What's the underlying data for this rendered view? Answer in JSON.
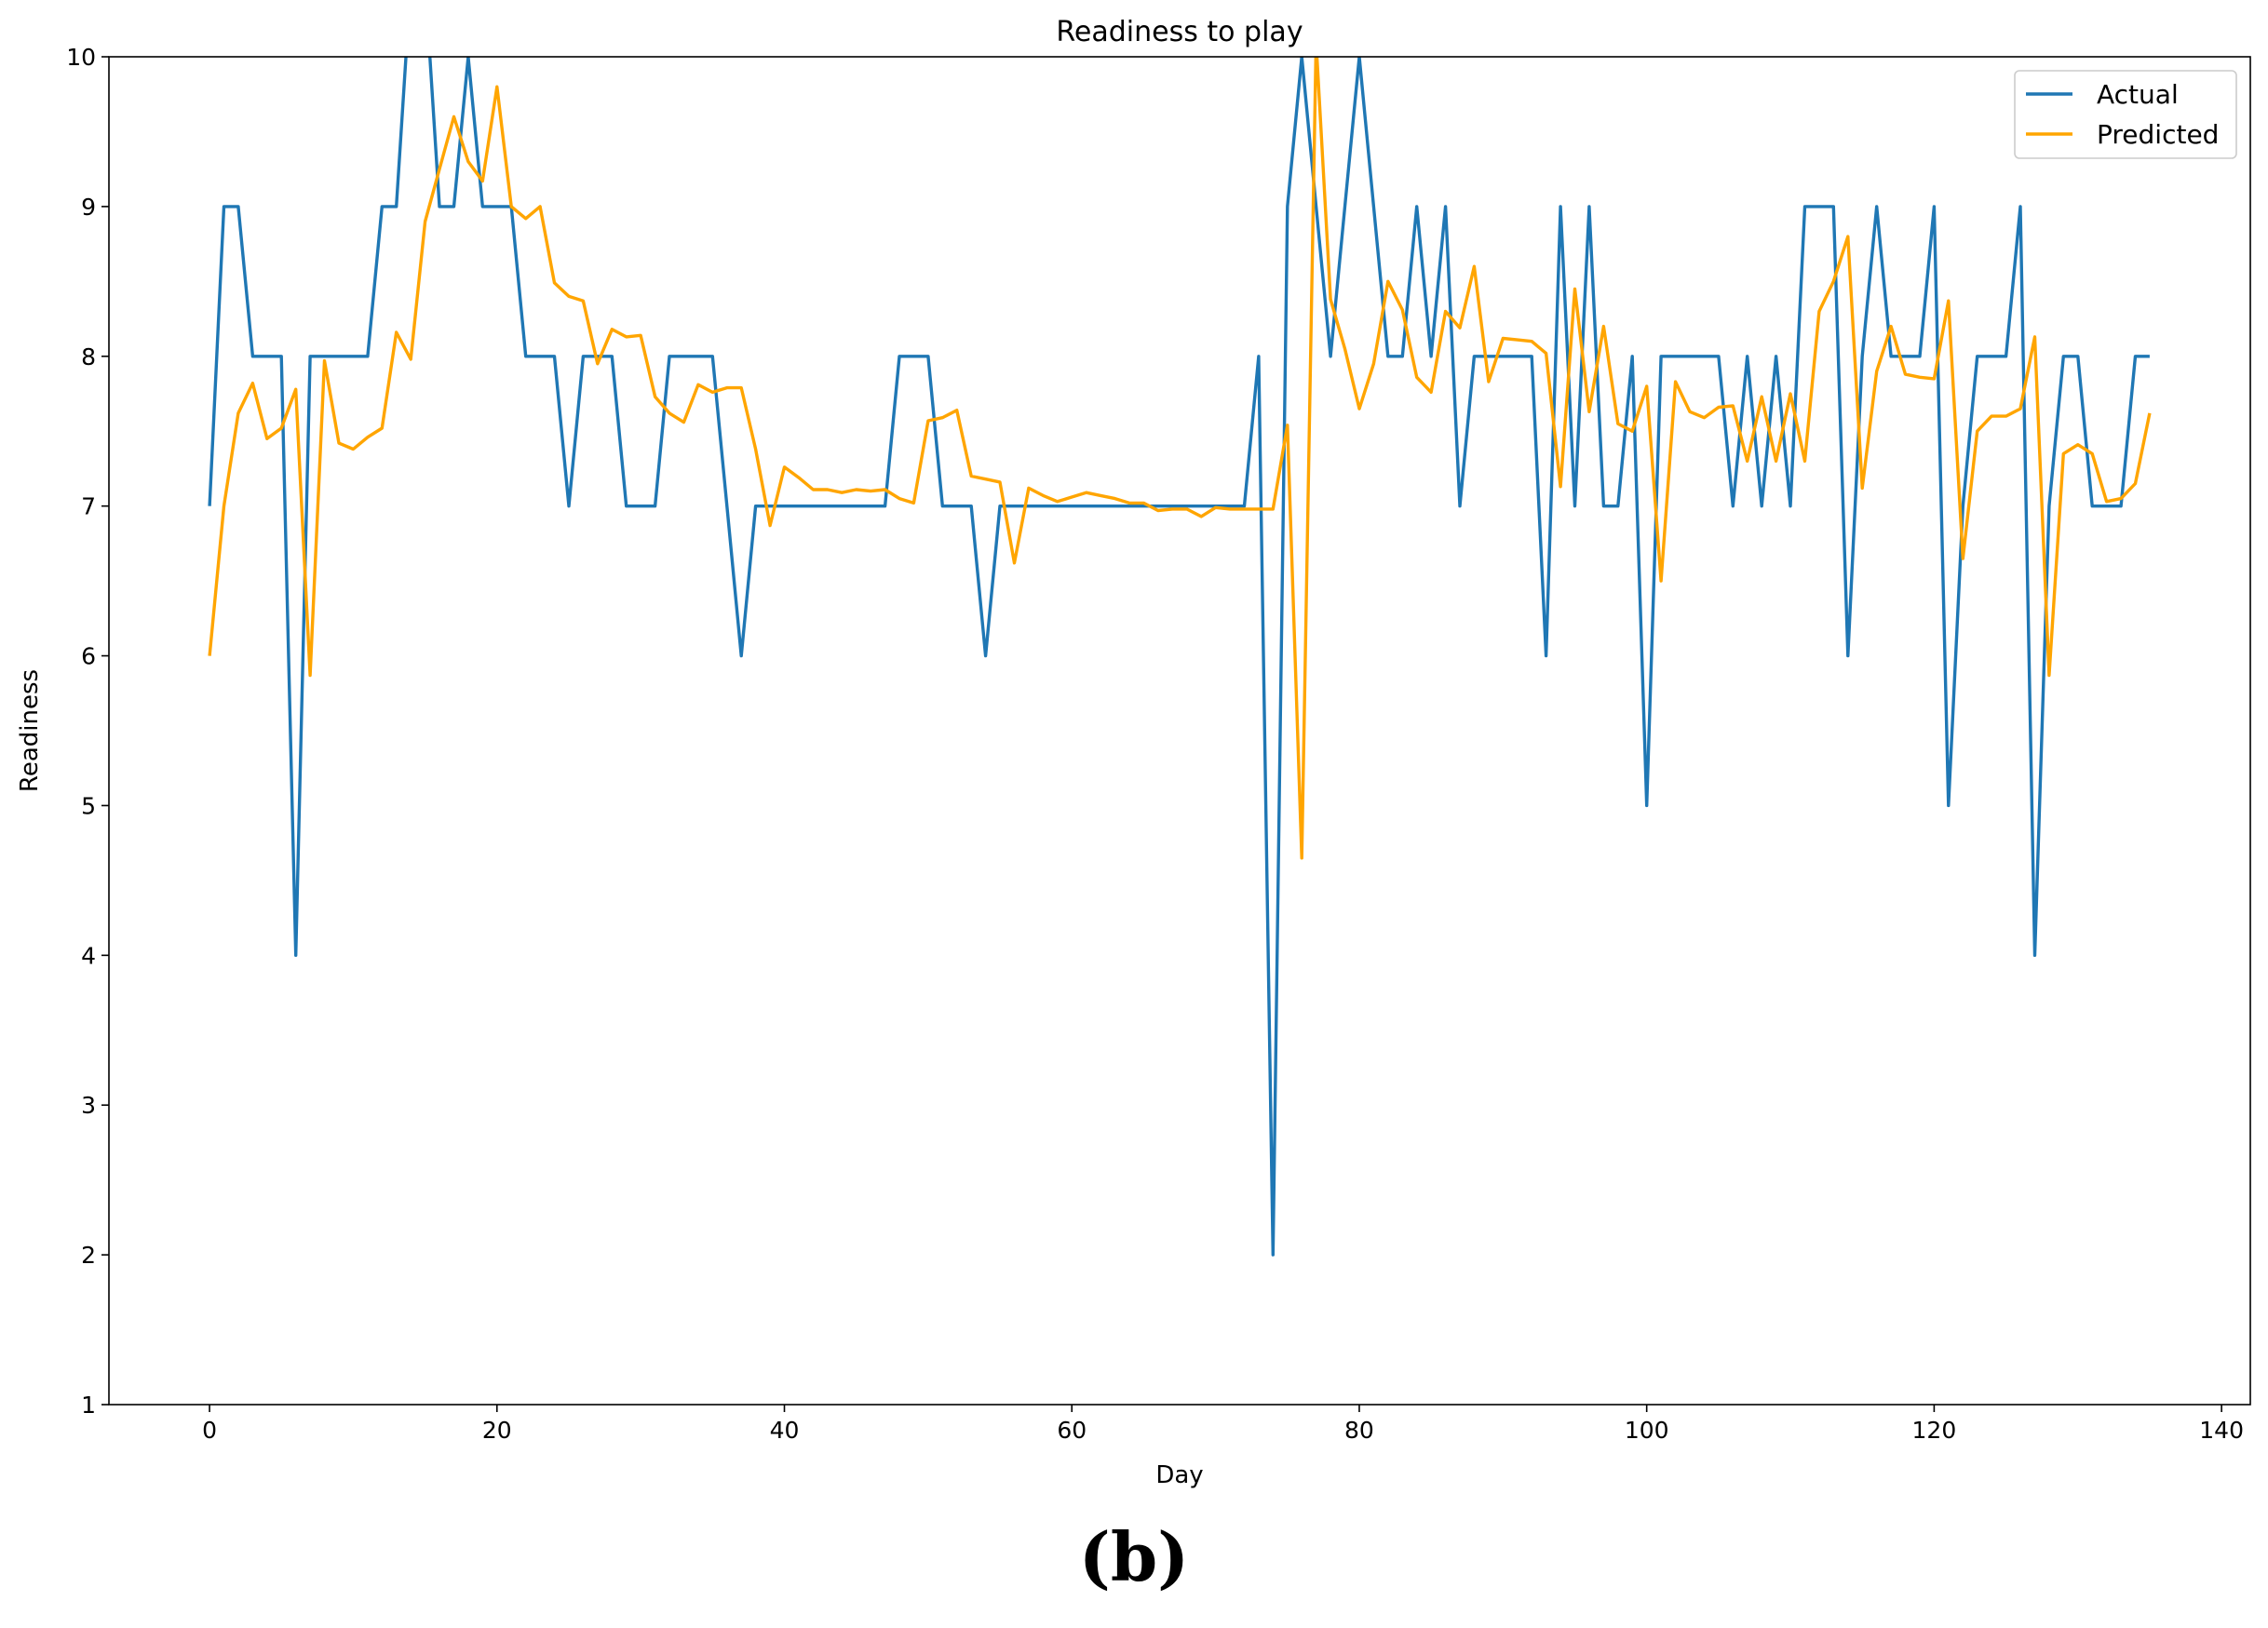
{
  "caption": "(b)",
  "chart_data": {
    "type": "line",
    "title": "Readiness to play",
    "xlabel": "Day",
    "ylabel": "Readiness",
    "xlim": [
      -7,
      142
    ],
    "ylim": [
      1,
      10
    ],
    "xticks": [
      0,
      20,
      40,
      60,
      80,
      100,
      120,
      140
    ],
    "yticks": [
      1,
      2,
      3,
      4,
      5,
      6,
      7,
      8,
      9,
      10
    ],
    "grid": false,
    "legend_position": "top-right",
    "series": [
      {
        "name": "Actual",
        "color": "#1f77b4",
        "x_start": 0,
        "values": [
          7,
          9,
          9,
          8,
          8,
          8,
          4,
          8,
          8,
          8,
          8,
          8,
          9,
          9,
          10.5,
          10.5,
          9,
          9,
          10,
          9,
          9,
          9,
          8,
          8,
          8,
          7,
          8,
          8,
          8,
          7,
          7,
          7,
          8,
          8,
          8,
          8,
          7,
          6,
          7,
          7,
          7,
          7,
          7,
          7,
          7,
          7,
          7,
          7,
          8,
          8,
          8,
          7,
          7,
          7,
          6,
          7,
          7,
          7,
          7,
          7,
          7,
          7,
          7,
          7,
          7,
          7,
          7,
          7,
          7,
          7,
          7,
          7,
          7,
          8,
          2,
          9,
          10,
          9,
          8,
          9,
          10,
          9,
          8,
          8,
          9,
          8,
          9,
          7,
          8,
          8,
          8,
          8,
          8,
          6,
          9,
          7,
          9,
          7,
          7,
          8,
          5,
          8,
          8,
          8,
          8,
          8,
          7,
          8,
          7,
          8,
          7,
          9,
          9,
          9,
          6,
          8,
          9,
          8,
          8,
          8,
          9,
          5,
          7,
          8,
          8,
          8,
          9,
          4,
          7,
          8,
          8,
          7,
          7,
          7,
          8,
          8
        ]
      },
      {
        "name": "Predicted",
        "color": "#ffa500",
        "x_start": 0,
        "values": [
          6,
          7,
          7.62,
          7.82,
          7.45,
          7.52,
          7.78,
          5.87,
          7.97,
          7.42,
          7.38,
          7.46,
          7.52,
          8.16,
          7.98,
          8.9,
          9.25,
          9.6,
          9.3,
          9.17,
          9.8,
          9.0,
          8.92,
          9.0,
          8.49,
          8.4,
          8.37,
          7.95,
          8.18,
          8.13,
          8.14,
          7.73,
          7.62,
          7.56,
          7.81,
          7.76,
          7.79,
          7.79,
          7.38,
          6.87,
          7.26,
          7.19,
          7.11,
          7.11,
          7.09,
          7.11,
          7.1,
          7.11,
          7.05,
          7.02,
          7.57,
          7.59,
          7.64,
          7.2,
          7.18,
          7.16,
          6.62,
          7.12,
          7.07,
          7.03,
          7.06,
          7.09,
          7.07,
          7.05,
          7.02,
          7.02,
          6.97,
          6.98,
          6.98,
          6.93,
          6.99,
          6.98,
          6.98,
          6.98,
          6.98,
          7.54,
          4.65,
          10.1,
          8.38,
          8.05,
          7.65,
          7.95,
          8.5,
          8.31,
          7.86,
          7.76,
          8.3,
          8.19,
          8.6,
          7.83,
          8.12,
          8.11,
          8.1,
          8.02,
          7.13,
          8.45,
          7.63,
          8.2,
          7.55,
          7.5,
          7.8,
          6.5,
          7.83,
          7.63,
          7.59,
          7.66,
          7.67,
          7.3,
          7.73,
          7.3,
          7.75,
          7.3,
          8.3,
          8.5,
          8.8,
          7.12,
          7.9,
          8.2,
          7.88,
          7.86,
          7.85,
          8.37,
          6.65,
          7.5,
          7.6,
          7.6,
          7.65,
          8.13,
          5.87,
          7.35,
          7.41,
          7.35,
          7.03,
          7.05,
          7.15,
          7.62
        ]
      }
    ]
  }
}
